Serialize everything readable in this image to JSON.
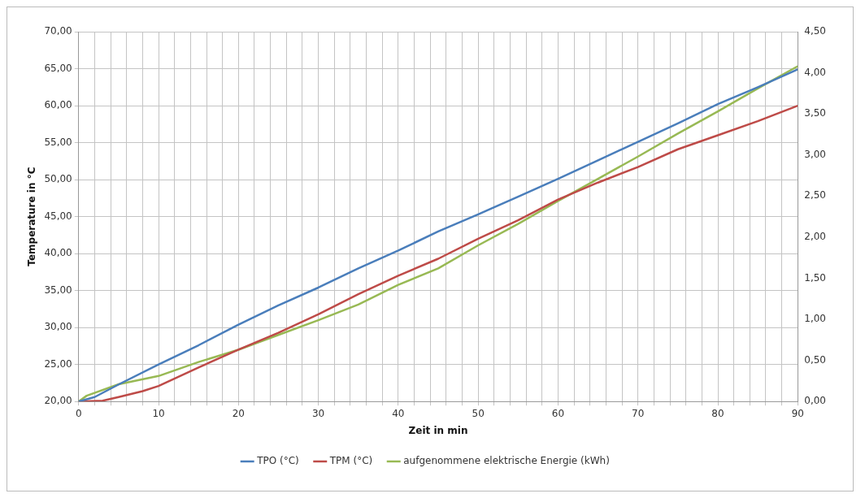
{
  "chart_data": {
    "type": "line",
    "xlabel": "Zeit in min",
    "ylabel": "Temperature in °C",
    "xlim": [
      0,
      90
    ],
    "xticks": [
      0,
      {
        "value": 2,
        "label": null
      },
      {
        "value": 4,
        "label": null
      },
      {
        "value": 6,
        "label": null
      },
      {
        "value": 8,
        "label": null
      },
      10,
      {
        "value": 12,
        "label": null
      },
      {
        "value": 14,
        "label": null
      },
      {
        "value": 16,
        "label": null
      },
      {
        "value": 18,
        "label": null
      },
      20,
      {
        "value": 22,
        "label": null
      },
      {
        "value": 24,
        "label": null
      },
      {
        "value": 26,
        "label": null
      },
      {
        "value": 28,
        "label": null
      },
      30,
      {
        "value": 32,
        "label": null
      },
      {
        "value": 34,
        "label": null
      },
      {
        "value": 36,
        "label": null
      },
      {
        "value": 38,
        "label": null
      },
      40,
      {
        "value": 42,
        "label": null
      },
      {
        "value": 44,
        "label": null
      },
      {
        "value": 46,
        "label": null
      },
      {
        "value": 48,
        "label": null
      },
      50,
      {
        "value": 52,
        "label": null
      },
      {
        "value": 54,
        "label": null
      },
      {
        "value": 56,
        "label": null
      },
      {
        "value": 58,
        "label": null
      },
      60,
      {
        "value": 62,
        "label": null
      },
      {
        "value": 64,
        "label": null
      },
      {
        "value": 66,
        "label": null
      },
      {
        "value": 68,
        "label": null
      },
      70,
      {
        "value": 72,
        "label": null
      },
      {
        "value": 74,
        "label": null
      },
      {
        "value": 76,
        "label": null
      },
      {
        "value": 78,
        "label": null
      },
      80,
      {
        "value": 82,
        "label": null
      },
      {
        "value": 84,
        "label": null
      },
      {
        "value": 86,
        "label": null
      },
      {
        "value": 88,
        "label": null
      },
      90
    ],
    "ylim": [
      20,
      70
    ],
    "yticks": [
      {
        "value": 20,
        "label": "20,00"
      },
      {
        "value": 25,
        "label": "25,00"
      },
      {
        "value": 30,
        "label": "30,00"
      },
      {
        "value": 35,
        "label": "35,00"
      },
      {
        "value": 40,
        "label": "40,00"
      },
      {
        "value": 45,
        "label": "45,00"
      },
      {
        "value": 50,
        "label": "50,00"
      },
      {
        "value": 55,
        "label": "55,00"
      },
      {
        "value": 60,
        "label": "60,00"
      },
      {
        "value": 65,
        "label": "65,00"
      },
      {
        "value": 70,
        "label": "70,00"
      }
    ],
    "y2lim": [
      0,
      4.5
    ],
    "y2ticks": [
      {
        "value": 0,
        "label": "0,00"
      },
      {
        "value": 0.5,
        "label": "0,50"
      },
      {
        "value": 1,
        "label": "1,00"
      },
      {
        "value": 1.5,
        "label": "1,50"
      },
      {
        "value": 2,
        "label": "2,00"
      },
      {
        "value": 2.5,
        "label": "2,50"
      },
      {
        "value": 3,
        "label": "3,00"
      },
      {
        "value": 3.5,
        "label": "3,50"
      },
      {
        "value": 4,
        "label": "4,00"
      },
      {
        "value": 4.5,
        "label": "4,50"
      }
    ],
    "grid": true,
    "legend": "bottom",
    "marker": "none",
    "series": [
      {
        "name": "TPO (°C)",
        "color": "#4a7ebb",
        "x": [
          0,
          2,
          5,
          10,
          15,
          20,
          25,
          30,
          35,
          40,
          45,
          50,
          55,
          60,
          65,
          70,
          75,
          80,
          85,
          90
        ],
        "values": [
          20,
          20.6,
          22.3,
          25.0,
          27.6,
          30.4,
          33.0,
          35.4,
          38.0,
          40.4,
          43.0,
          45.3,
          47.7,
          50.1,
          52.6,
          55.1,
          57.6,
          60.2,
          62.5,
          64.9
        ]
      },
      {
        "name": "TPM (°C)",
        "color": "#be4b48",
        "x": [
          0,
          3,
          5,
          8,
          10,
          15,
          20,
          25,
          30,
          35,
          40,
          45,
          50,
          55,
          60,
          65,
          70,
          75,
          80,
          85,
          90
        ],
        "values": [
          20,
          20.1,
          20.6,
          21.4,
          22.1,
          24.6,
          27.0,
          29.3,
          31.8,
          34.5,
          37.0,
          39.3,
          42.0,
          44.5,
          47.3,
          49.6,
          51.7,
          54.1,
          56.0,
          57.9,
          60.0
        ]
      },
      {
        "name": "aufgenommene elektrische Energie (kWh)",
        "color": "#98b954",
        "axis": "y2",
        "x": [
          0,
          1,
          5,
          10,
          15,
          20,
          25,
          30,
          35,
          40,
          45,
          50,
          55,
          60,
          65,
          70,
          75,
          80,
          85,
          90
        ],
        "values": [
          0,
          0.07,
          0.21,
          0.31,
          0.48,
          0.63,
          0.81,
          0.99,
          1.18,
          1.42,
          1.62,
          1.9,
          2.16,
          2.44,
          2.71,
          2.98,
          3.26,
          3.53,
          3.81,
          4.08
        ]
      }
    ]
  }
}
